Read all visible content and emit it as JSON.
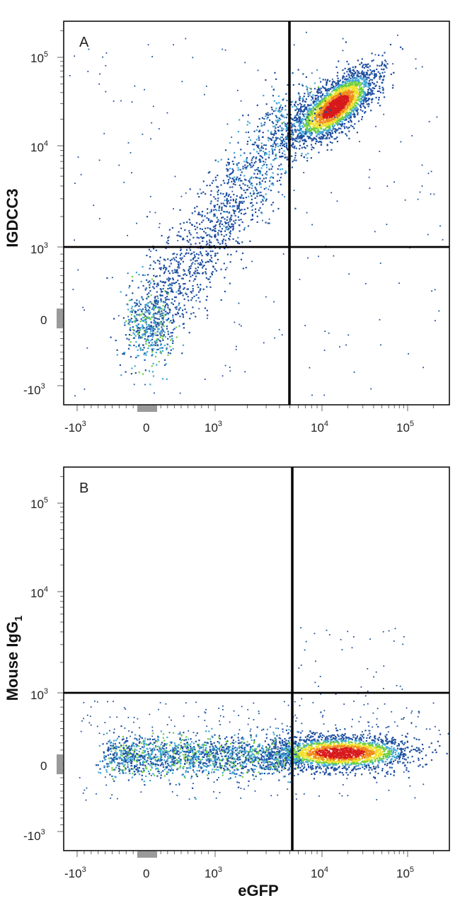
{
  "chart_data": [
    {
      "type": "scatter",
      "panel_label": "A",
      "xlabel": "",
      "ylabel": "IGDCC3",
      "x_ticks": [
        {
          "base": "-10",
          "exp": "3"
        },
        {
          "base": "0",
          "exp": ""
        },
        {
          "base": "10",
          "exp": "3"
        },
        {
          "base": "10",
          "exp": "4"
        },
        {
          "base": "10",
          "exp": "5"
        }
      ],
      "y_ticks": [
        {
          "base": "-10",
          "exp": "3"
        },
        {
          "base": "0",
          "exp": ""
        },
        {
          "base": "10",
          "exp": "3"
        },
        {
          "base": "10",
          "exp": "4"
        },
        {
          "base": "10",
          "exp": "5"
        }
      ],
      "scale": "biexponential",
      "quadrant_gate": {
        "x": 5000,
        "y": 1100
      },
      "density_colors": [
        "#1f4fa0",
        "#3fa7d6",
        "#6fcf3f",
        "#f1e02a",
        "#f08a1c",
        "#d7191c"
      ],
      "populations": [
        {
          "description": "main double-positive cluster",
          "x_center": 14000,
          "y_center": 28000,
          "density": "high"
        },
        {
          "description": "diagonal trail",
          "x_from": 0,
          "y_from": 0,
          "x_to": 14000,
          "y_to": 28000,
          "density": "medium"
        }
      ]
    },
    {
      "type": "scatter",
      "panel_label": "B",
      "xlabel": "eGFP",
      "ylabel": "Mouse IgG",
      "ylabel_sub": "1",
      "x_ticks": [
        {
          "base": "-10",
          "exp": "3"
        },
        {
          "base": "0",
          "exp": ""
        },
        {
          "base": "10",
          "exp": "3"
        },
        {
          "base": "10",
          "exp": "4"
        },
        {
          "base": "10",
          "exp": "5"
        }
      ],
      "y_ticks": [
        {
          "base": "-10",
          "exp": "3"
        },
        {
          "base": "0",
          "exp": ""
        },
        {
          "base": "10",
          "exp": "3"
        },
        {
          "base": "10",
          "exp": "4"
        },
        {
          "base": "10",
          "exp": "5"
        }
      ],
      "scale": "biexponential",
      "quadrant_gate": {
        "x": 5000,
        "y": 1100
      },
      "density_colors": [
        "#1f4fa0",
        "#3fa7d6",
        "#6fcf3f",
        "#f1e02a",
        "#f08a1c",
        "#d7191c"
      ],
      "populations": [
        {
          "description": "eGFP-positive isotype band",
          "x_center": 14000,
          "y_center": 0,
          "density": "high"
        },
        {
          "description": "eGFP-negative band",
          "x_from": -800,
          "x_to": 5000,
          "y_center": 0,
          "density": "medium"
        }
      ]
    }
  ]
}
